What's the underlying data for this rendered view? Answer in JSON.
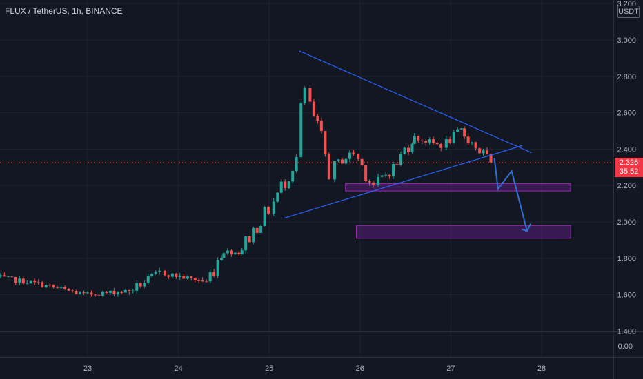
{
  "header": {
    "symbol": "FLUX / TetherUS",
    "interval": "1h",
    "exchange": "BINANCE"
  },
  "price_scale": {
    "currency_label": "USDT",
    "current_price": "2.326",
    "countdown": "35:52"
  },
  "colors": {
    "background": "#131722",
    "grid": "#1f2330",
    "up": "#26a69a",
    "down": "#ef5350",
    "trendline": "#2962ff",
    "projection": "#2f6fd6",
    "zone_fill": "#7b1fa2",
    "zone_border": "#9c27b0",
    "price_line": "#ef5350",
    "axis_text": "#b2b5be"
  },
  "chart_data": {
    "type": "candlestick",
    "title": "FLUX / TetherUS, 1h, BINANCE",
    "x_axis": {
      "tick_labels": [
        "23",
        "24",
        "25",
        "26",
        "27",
        "28"
      ]
    },
    "y_axis": {
      "tick_labels": [
        "3.200",
        "3.000",
        "2.800",
        "2.600",
        "2.400",
        "2.200",
        "2.000",
        "1.800",
        "1.600",
        "1.400"
      ],
      "range": [
        1.4,
        3.2
      ]
    },
    "volume_pane": {
      "tick_labels": [
        "0.00"
      ]
    },
    "current_price": 2.326,
    "segments": [
      {
        "from_day": 22.0,
        "to_day": 22.5,
        "start": 1.7,
        "end": 1.66
      },
      {
        "from_day": 22.5,
        "to_day": 23.0,
        "start": 1.66,
        "end": 1.6
      },
      {
        "from_day": 23.0,
        "to_day": 23.5,
        "start": 1.6,
        "end": 1.62
      },
      {
        "from_day": 23.5,
        "to_day": 23.85,
        "start": 1.62,
        "end": 1.72
      },
      {
        "from_day": 23.85,
        "to_day": 24.35,
        "start": 1.72,
        "end": 1.67
      },
      {
        "from_day": 24.35,
        "to_day": 24.5,
        "start": 1.67,
        "end": 1.84
      },
      {
        "from_day": 24.5,
        "to_day": 24.7,
        "start": 1.84,
        "end": 1.83
      },
      {
        "from_day": 24.7,
        "to_day": 25.05,
        "start": 1.83,
        "end": 2.07
      },
      {
        "from_day": 25.05,
        "to_day": 25.35,
        "start": 2.07,
        "end": 2.35
      },
      {
        "from_day": 25.35,
        "to_day": 25.45,
        "start": 2.35,
        "end": 2.68
      },
      {
        "from_day": 25.45,
        "to_day": 25.72,
        "start": 2.68,
        "end": 2.3
      },
      {
        "from_day": 25.72,
        "to_day": 25.98,
        "start": 2.3,
        "end": 2.38
      },
      {
        "from_day": 25.98,
        "to_day": 26.2,
        "start": 2.38,
        "end": 2.2
      },
      {
        "from_day": 26.2,
        "to_day": 26.45,
        "start": 2.2,
        "end": 2.32
      },
      {
        "from_day": 26.45,
        "to_day": 26.6,
        "start": 2.32,
        "end": 2.47
      },
      {
        "from_day": 26.6,
        "to_day": 26.95,
        "start": 2.47,
        "end": 2.42
      },
      {
        "from_day": 26.95,
        "to_day": 27.15,
        "start": 2.42,
        "end": 2.5
      },
      {
        "from_day": 27.15,
        "to_day": 27.48,
        "start": 2.5,
        "end": 2.326
      }
    ],
    "annotations": {
      "upper_trendline": [
        {
          "day": 25.33,
          "price": 2.94
        },
        {
          "day": 27.89,
          "price": 2.38
        }
      ],
      "lower_trendline": [
        {
          "day": 25.16,
          "price": 2.02
        },
        {
          "day": 27.79,
          "price": 2.42
        }
      ],
      "zones": [
        {
          "from_day": 25.84,
          "to_day": 28.32,
          "top": 2.21,
          "bottom": 2.17
        },
        {
          "from_day": 25.96,
          "to_day": 28.32,
          "top": 1.98,
          "bottom": 1.91
        }
      ],
      "projection_path": [
        {
          "day": 27.48,
          "price": 2.35
        },
        {
          "day": 27.52,
          "price": 2.18
        },
        {
          "day": 27.67,
          "price": 2.28
        },
        {
          "day": 27.84,
          "price": 1.95
        }
      ],
      "arrow_head": [
        {
          "day": 27.78,
          "price": 1.96
        },
        {
          "day": 27.84,
          "price": 1.95
        },
        {
          "day": 27.88,
          "price": 1.99
        }
      ]
    }
  }
}
